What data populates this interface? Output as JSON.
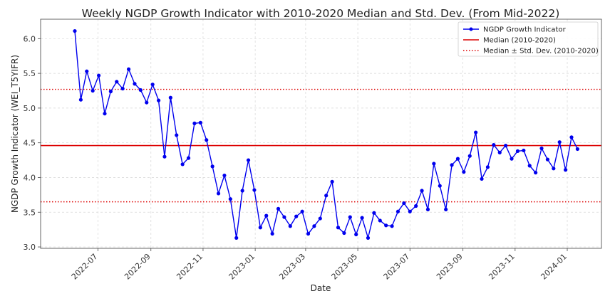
{
  "chart_data": {
    "type": "line",
    "title": "Weekly NGDP Growth Indicator with 2010-2020 Median and Std. Dev. (From Mid-2022)",
    "xlabel": "Date",
    "ylabel": "NGDP Growth Indicator (WEI_T5YIFR)",
    "ylim": [
      2.98,
      6.28
    ],
    "xlim": [
      "2022-04-25",
      "2024-02-10"
    ],
    "y_ticks": [
      "3.0",
      "3.5",
      "4.0",
      "4.5",
      "5.0",
      "5.5",
      "6.0"
    ],
    "x_ticks": [
      "2022-07",
      "2022-09",
      "2022-11",
      "2023-01",
      "2023-03",
      "2023-05",
      "2023-07",
      "2023-09",
      "2023-11",
      "2024-01"
    ],
    "grid": true,
    "legend_position": "top-right",
    "colors": {
      "series": "#0000ee",
      "median": "#dd0000",
      "std": "#dd0000"
    },
    "median": 4.46,
    "std_band": [
      3.65,
      5.27
    ],
    "legend": [
      "NGDP Growth Indicator",
      "Median (2010-2020)",
      "Median ± Std. Dev. (2010-2020)"
    ],
    "series": [
      {
        "name": "NGDP Growth Indicator",
        "x": [
          "2022-06-04",
          "2022-06-11",
          "2022-06-18",
          "2022-06-25",
          "2022-07-02",
          "2022-07-09",
          "2022-07-16",
          "2022-07-23",
          "2022-07-30",
          "2022-08-06",
          "2022-08-13",
          "2022-08-20",
          "2022-08-27",
          "2022-09-03",
          "2022-09-10",
          "2022-09-17",
          "2022-09-24",
          "2022-10-01",
          "2022-10-08",
          "2022-10-15",
          "2022-10-22",
          "2022-10-29",
          "2022-11-05",
          "2022-11-12",
          "2022-11-19",
          "2022-11-26",
          "2022-12-03",
          "2022-12-10",
          "2022-12-17",
          "2022-12-24",
          "2022-12-31",
          "2023-01-07",
          "2023-01-14",
          "2023-01-21",
          "2023-01-28",
          "2023-02-04",
          "2023-02-11",
          "2023-02-18",
          "2023-02-25",
          "2023-03-04",
          "2023-03-11",
          "2023-03-18",
          "2023-03-25",
          "2023-04-01",
          "2023-04-08",
          "2023-04-15",
          "2023-04-22",
          "2023-04-29",
          "2023-05-06",
          "2023-05-13",
          "2023-05-20",
          "2023-05-27",
          "2023-06-03",
          "2023-06-10",
          "2023-06-17",
          "2023-06-24",
          "2023-07-01",
          "2023-07-08",
          "2023-07-15",
          "2023-07-22",
          "2023-07-29",
          "2023-08-05",
          "2023-08-12",
          "2023-08-19",
          "2023-08-26",
          "2023-09-02",
          "2023-09-09",
          "2023-09-16",
          "2023-09-23",
          "2023-09-30",
          "2023-10-07",
          "2023-10-14",
          "2023-10-21",
          "2023-10-28",
          "2023-11-04",
          "2023-11-11",
          "2023-11-18",
          "2023-11-25",
          "2023-12-02",
          "2023-12-09",
          "2023-12-16",
          "2023-12-23",
          "2023-12-30",
          "2024-01-06",
          "2024-01-13"
        ],
        "values": [
          6.11,
          5.12,
          5.53,
          5.25,
          5.47,
          4.92,
          5.24,
          5.38,
          5.28,
          5.56,
          5.35,
          5.26,
          5.08,
          5.34,
          5.11,
          4.3,
          5.15,
          4.61,
          4.19,
          4.28,
          4.78,
          4.79,
          4.54,
          4.16,
          3.77,
          4.03,
          3.69,
          3.13,
          3.81,
          4.25,
          3.82,
          3.28,
          3.45,
          3.19,
          3.55,
          3.43,
          3.3,
          3.44,
          3.51,
          3.19,
          3.3,
          3.41,
          3.74,
          3.94,
          3.28,
          3.2,
          3.43,
          3.18,
          3.42,
          3.13,
          3.49,
          3.38,
          3.31,
          3.3,
          3.51,
          3.63,
          3.51,
          3.59,
          3.81,
          3.54,
          4.2,
          3.88,
          3.54,
          4.18,
          4.27,
          4.08,
          4.31,
          4.65,
          3.98,
          4.15,
          4.47,
          4.36,
          4.46,
          4.27,
          4.38,
          4.39,
          4.17,
          4.07,
          4.42,
          4.26,
          4.13,
          4.51,
          4.11,
          4.58,
          4.41
        ]
      }
    ]
  }
}
